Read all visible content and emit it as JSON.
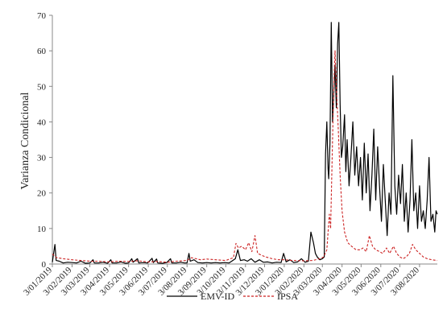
{
  "chart_data": {
    "type": "line",
    "title": "",
    "xlabel": "",
    "ylabel": "Varianza Condicional",
    "ylim": [
      0,
      70
    ],
    "yticks": [
      0,
      10,
      20,
      30,
      40,
      50,
      60,
      70
    ],
    "ytick_labels": [
      "0",
      "10",
      "20",
      "30",
      "40",
      "50",
      "60",
      "70"
    ],
    "x_range": [
      "2019-01-03",
      "2020-08-31"
    ],
    "xticks": [
      "2019-01-03",
      "2019-02-03",
      "2019-03-03",
      "2019-04-03",
      "2019-05-03",
      "2019-06-03",
      "2019-07-03",
      "2019-08-03",
      "2019-09-03",
      "2019-10-03",
      "2019-11-03",
      "2019-12-03",
      "2020-01-03",
      "2020-02-03",
      "2020-03-03",
      "2020-04-03",
      "2020-05-03",
      "2020-06-03",
      "2020-07-03",
      "2020-08-03"
    ],
    "xtick_labels": [
      "3/01/2019",
      "3/02/2019",
      "3/03/2019",
      "3/04/2019",
      "3/05/2019",
      "3/06/2019",
      "3/07/2019",
      "3/08/2019",
      "3/09/2019",
      "3/10/2019",
      "3/11/2019",
      "3/12/2019",
      "3/01/2020",
      "3/02/2020",
      "3/03/2020",
      "3/04/2020",
      "3/05/2020",
      "3/06/2020",
      "3/07/2020",
      "3/08/2020"
    ],
    "grid": false,
    "legend": "bottom",
    "series": [
      {
        "name": "EMV-ID",
        "color": "#000000",
        "dash": "solid",
        "points": [
          [
            "2019-01-03",
            0.5
          ],
          [
            "2019-01-07",
            5.5
          ],
          [
            "2019-01-09",
            1.0
          ],
          [
            "2019-01-14",
            0.8
          ],
          [
            "2019-01-20",
            0.3
          ],
          [
            "2019-01-27",
            0.5
          ],
          [
            "2019-02-03",
            0.4
          ],
          [
            "2019-02-10",
            0.3
          ],
          [
            "2019-02-17",
            0.8
          ],
          [
            "2019-02-24",
            0.2
          ],
          [
            "2019-03-03",
            0.3
          ],
          [
            "2019-03-08",
            1.2
          ],
          [
            "2019-03-10",
            0.3
          ],
          [
            "2019-03-17",
            0.3
          ],
          [
            "2019-03-24",
            0.5
          ],
          [
            "2019-03-31",
            0.2
          ],
          [
            "2019-04-05",
            1.2
          ],
          [
            "2019-04-07",
            0.3
          ],
          [
            "2019-04-14",
            0.3
          ],
          [
            "2019-04-21",
            0.6
          ],
          [
            "2019-04-28",
            0.2
          ],
          [
            "2019-05-03",
            0.3
          ],
          [
            "2019-05-08",
            1.5
          ],
          [
            "2019-05-10",
            0.5
          ],
          [
            "2019-05-17",
            1.5
          ],
          [
            "2019-05-19",
            0.3
          ],
          [
            "2019-05-26",
            0.4
          ],
          [
            "2019-06-02",
            0.3
          ],
          [
            "2019-06-09",
            1.6
          ],
          [
            "2019-06-11",
            0.4
          ],
          [
            "2019-06-16",
            1.4
          ],
          [
            "2019-06-18",
            0.3
          ],
          [
            "2019-06-25",
            0.2
          ],
          [
            "2019-07-02",
            0.4
          ],
          [
            "2019-07-08",
            1.5
          ],
          [
            "2019-07-10",
            0.3
          ],
          [
            "2019-07-17",
            0.3
          ],
          [
            "2019-07-24",
            0.5
          ],
          [
            "2019-07-30",
            0.3
          ],
          [
            "2019-08-03",
            0.3
          ],
          [
            "2019-08-06",
            3.0
          ],
          [
            "2019-08-08",
            0.8
          ],
          [
            "2019-08-14",
            1.2
          ],
          [
            "2019-08-20",
            0.4
          ],
          [
            "2019-08-27",
            0.3
          ],
          [
            "2019-09-03",
            0.4
          ],
          [
            "2019-09-10",
            0.3
          ],
          [
            "2019-09-17",
            0.4
          ],
          [
            "2019-09-24",
            0.3
          ],
          [
            "2019-10-01",
            0.4
          ],
          [
            "2019-10-08",
            0.3
          ],
          [
            "2019-10-14",
            1.0
          ],
          [
            "2019-10-18",
            1.5
          ],
          [
            "2019-10-22",
            4.0
          ],
          [
            "2019-10-26",
            1.0
          ],
          [
            "2019-11-01",
            1.2
          ],
          [
            "2019-11-06",
            0.8
          ],
          [
            "2019-11-12",
            1.5
          ],
          [
            "2019-11-18",
            0.5
          ],
          [
            "2019-11-25",
            1.2
          ],
          [
            "2019-12-01",
            0.5
          ],
          [
            "2019-12-08",
            0.6
          ],
          [
            "2019-12-15",
            0.3
          ],
          [
            "2019-12-22",
            0.5
          ],
          [
            "2019-12-29",
            0.4
          ],
          [
            "2020-01-02",
            3.0
          ],
          [
            "2020-01-06",
            0.6
          ],
          [
            "2020-01-12",
            1.2
          ],
          [
            "2020-01-18",
            0.4
          ],
          [
            "2020-01-24",
            0.6
          ],
          [
            "2020-01-30",
            1.5
          ],
          [
            "2020-02-05",
            0.5
          ],
          [
            "2020-02-10",
            0.8
          ],
          [
            "2020-02-14",
            9.0
          ],
          [
            "2020-02-18",
            6.0
          ],
          [
            "2020-02-21",
            3.0
          ],
          [
            "2020-02-24",
            2.0
          ],
          [
            "2020-02-28",
            1.2
          ],
          [
            "2020-03-03",
            1.5
          ],
          [
            "2020-03-06",
            2.0
          ],
          [
            "2020-03-08",
            31.0
          ],
          [
            "2020-03-10",
            40.0
          ],
          [
            "2020-03-12",
            27.0
          ],
          [
            "2020-03-13",
            24.0
          ],
          [
            "2020-03-15",
            34.0
          ],
          [
            "2020-03-17",
            68.0
          ],
          [
            "2020-03-19",
            40.0
          ],
          [
            "2020-03-21",
            48.0
          ],
          [
            "2020-03-23",
            56.0
          ],
          [
            "2020-03-25",
            44.0
          ],
          [
            "2020-03-27",
            62.0
          ],
          [
            "2020-03-29",
            68.0
          ],
          [
            "2020-03-31",
            45.0
          ],
          [
            "2020-04-02",
            30.0
          ],
          [
            "2020-04-04",
            33.0
          ],
          [
            "2020-04-07",
            42.0
          ],
          [
            "2020-04-09",
            26.0
          ],
          [
            "2020-04-11",
            35.0
          ],
          [
            "2020-04-14",
            22.0
          ],
          [
            "2020-04-17",
            30.0
          ],
          [
            "2020-04-20",
            40.0
          ],
          [
            "2020-04-23",
            25.0
          ],
          [
            "2020-04-26",
            33.0
          ],
          [
            "2020-04-29",
            22.0
          ],
          [
            "2020-05-02",
            30.0
          ],
          [
            "2020-05-05",
            18.0
          ],
          [
            "2020-05-08",
            34.0
          ],
          [
            "2020-05-11",
            20.0
          ],
          [
            "2020-05-14",
            31.0
          ],
          [
            "2020-05-17",
            15.0
          ],
          [
            "2020-05-20",
            25.0
          ],
          [
            "2020-05-23",
            38.0
          ],
          [
            "2020-05-26",
            18.0
          ],
          [
            "2020-05-29",
            33.0
          ],
          [
            "2020-06-01",
            22.0
          ],
          [
            "2020-06-04",
            12.0
          ],
          [
            "2020-06-07",
            28.0
          ],
          [
            "2020-06-10",
            18.0
          ],
          [
            "2020-06-13",
            8.0
          ],
          [
            "2020-06-16",
            20.0
          ],
          [
            "2020-06-19",
            14.0
          ],
          [
            "2020-06-22",
            53.0
          ],
          [
            "2020-06-25",
            22.0
          ],
          [
            "2020-06-28",
            14.0
          ],
          [
            "2020-07-01",
            25.0
          ],
          [
            "2020-07-04",
            17.0
          ],
          [
            "2020-07-07",
            28.0
          ],
          [
            "2020-07-10",
            12.0
          ],
          [
            "2020-07-13",
            20.0
          ],
          [
            "2020-07-16",
            9.0
          ],
          [
            "2020-07-19",
            18.0
          ],
          [
            "2020-07-22",
            35.0
          ],
          [
            "2020-07-25",
            15.0
          ],
          [
            "2020-07-28",
            20.0
          ],
          [
            "2020-07-31",
            10.0
          ],
          [
            "2020-08-03",
            22.0
          ],
          [
            "2020-08-06",
            12.0
          ],
          [
            "2020-08-09",
            15.0
          ],
          [
            "2020-08-12",
            10.0
          ],
          [
            "2020-08-15",
            18.0
          ],
          [
            "2020-08-18",
            30.0
          ],
          [
            "2020-08-21",
            12.0
          ],
          [
            "2020-08-24",
            14.0
          ],
          [
            "2020-08-27",
            9.0
          ],
          [
            "2020-08-29",
            15.0
          ],
          [
            "2020-08-31",
            14.0
          ]
        ]
      },
      {
        "name": "IPSA",
        "color": "#cc2222",
        "dash": "dashed",
        "points": [
          [
            "2019-01-03",
            2.8
          ],
          [
            "2019-01-10",
            1.8
          ],
          [
            "2019-01-20",
            1.5
          ],
          [
            "2019-02-03",
            1.2
          ],
          [
            "2019-02-17",
            1.0
          ],
          [
            "2019-03-03",
            0.8
          ],
          [
            "2019-03-17",
            0.8
          ],
          [
            "2019-04-03",
            0.6
          ],
          [
            "2019-04-17",
            0.8
          ],
          [
            "2019-05-03",
            0.7
          ],
          [
            "2019-05-17",
            0.9
          ],
          [
            "2019-06-03",
            0.6
          ],
          [
            "2019-06-17",
            0.7
          ],
          [
            "2019-07-03",
            0.5
          ],
          [
            "2019-07-17",
            0.8
          ],
          [
            "2019-08-03",
            1.0
          ],
          [
            "2019-08-10",
            1.8
          ],
          [
            "2019-08-17",
            1.5
          ],
          [
            "2019-08-24",
            1.2
          ],
          [
            "2019-09-03",
            1.4
          ],
          [
            "2019-09-17",
            1.2
          ],
          [
            "2019-10-03",
            1.0
          ],
          [
            "2019-10-15",
            1.8
          ],
          [
            "2019-10-19",
            5.8
          ],
          [
            "2019-10-23",
            4.5
          ],
          [
            "2019-10-28",
            5.0
          ],
          [
            "2019-11-03",
            4.0
          ],
          [
            "2019-11-08",
            6.0
          ],
          [
            "2019-11-13",
            3.5
          ],
          [
            "2019-11-18",
            8.0
          ],
          [
            "2019-11-22",
            3.0
          ],
          [
            "2019-11-28",
            2.5
          ],
          [
            "2019-12-05",
            2.0
          ],
          [
            "2019-12-15",
            1.5
          ],
          [
            "2019-12-25",
            1.2
          ],
          [
            "2020-01-03",
            1.2
          ],
          [
            "2020-01-17",
            1.0
          ],
          [
            "2020-02-03",
            0.9
          ],
          [
            "2020-02-17",
            1.0
          ],
          [
            "2020-02-28",
            1.5
          ],
          [
            "2020-03-05",
            2.0
          ],
          [
            "2020-03-10",
            4.0
          ],
          [
            "2020-03-14",
            14.0
          ],
          [
            "2020-03-16",
            10.0
          ],
          [
            "2020-03-19",
            35.0
          ],
          [
            "2020-03-21",
            50.0
          ],
          [
            "2020-03-23",
            60.0
          ],
          [
            "2020-03-25",
            50.0
          ],
          [
            "2020-03-28",
            38.0
          ],
          [
            "2020-03-31",
            25.0
          ],
          [
            "2020-04-03",
            15.0
          ],
          [
            "2020-04-07",
            9.0
          ],
          [
            "2020-04-12",
            6.0
          ],
          [
            "2020-04-18",
            5.0
          ],
          [
            "2020-04-25",
            4.0
          ],
          [
            "2020-05-01",
            4.0
          ],
          [
            "2020-05-06",
            4.5
          ],
          [
            "2020-05-11",
            3.5
          ],
          [
            "2020-05-16",
            8.0
          ],
          [
            "2020-05-21",
            5.0
          ],
          [
            "2020-05-26",
            4.0
          ],
          [
            "2020-06-01",
            3.5
          ],
          [
            "2020-06-06",
            3.0
          ],
          [
            "2020-06-12",
            4.5
          ],
          [
            "2020-06-17",
            3.0
          ],
          [
            "2020-06-23",
            5.0
          ],
          [
            "2020-06-28",
            3.0
          ],
          [
            "2020-07-03",
            2.0
          ],
          [
            "2020-07-08",
            1.5
          ],
          [
            "2020-07-13",
            2.0
          ],
          [
            "2020-07-18",
            3.0
          ],
          [
            "2020-07-23",
            5.5
          ],
          [
            "2020-07-28",
            4.0
          ],
          [
            "2020-08-03",
            3.0
          ],
          [
            "2020-08-09",
            2.0
          ],
          [
            "2020-08-15",
            1.5
          ],
          [
            "2020-08-22",
            1.2
          ],
          [
            "2020-08-31",
            1.0
          ]
        ]
      }
    ]
  }
}
